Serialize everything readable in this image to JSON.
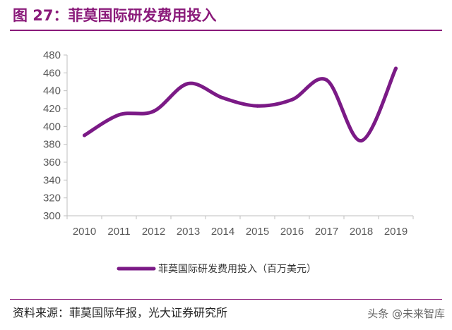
{
  "figure_title": "图 27：菲莫国际研发费用投入",
  "source_note": "资料来源：菲莫国际年报，光大证券研究所",
  "watermark": "头条 @未来智库",
  "colors": {
    "accent": "#8a1a7a",
    "series": "#7b1a86",
    "axis": "#bfbfbf",
    "tick_text": "#595959"
  },
  "chart_data": {
    "type": "line",
    "title": "",
    "xlabel": "",
    "ylabel": "",
    "ylim": [
      300,
      480
    ],
    "yticks": [
      "480",
      "460",
      "440",
      "420",
      "400",
      "380",
      "360",
      "340",
      "320",
      "300"
    ],
    "categories": [
      "2010",
      "2011",
      "2012",
      "2013",
      "2014",
      "2015",
      "2016",
      "2017",
      "2018",
      "2019"
    ],
    "series": [
      {
        "name": "菲莫国际研发费用投入（百万美元）",
        "values": [
          390,
          413,
          417,
          448,
          432,
          423,
          430,
          452,
          384,
          465
        ]
      }
    ],
    "smooth": true,
    "grid": false,
    "legend_position": "bottom"
  }
}
